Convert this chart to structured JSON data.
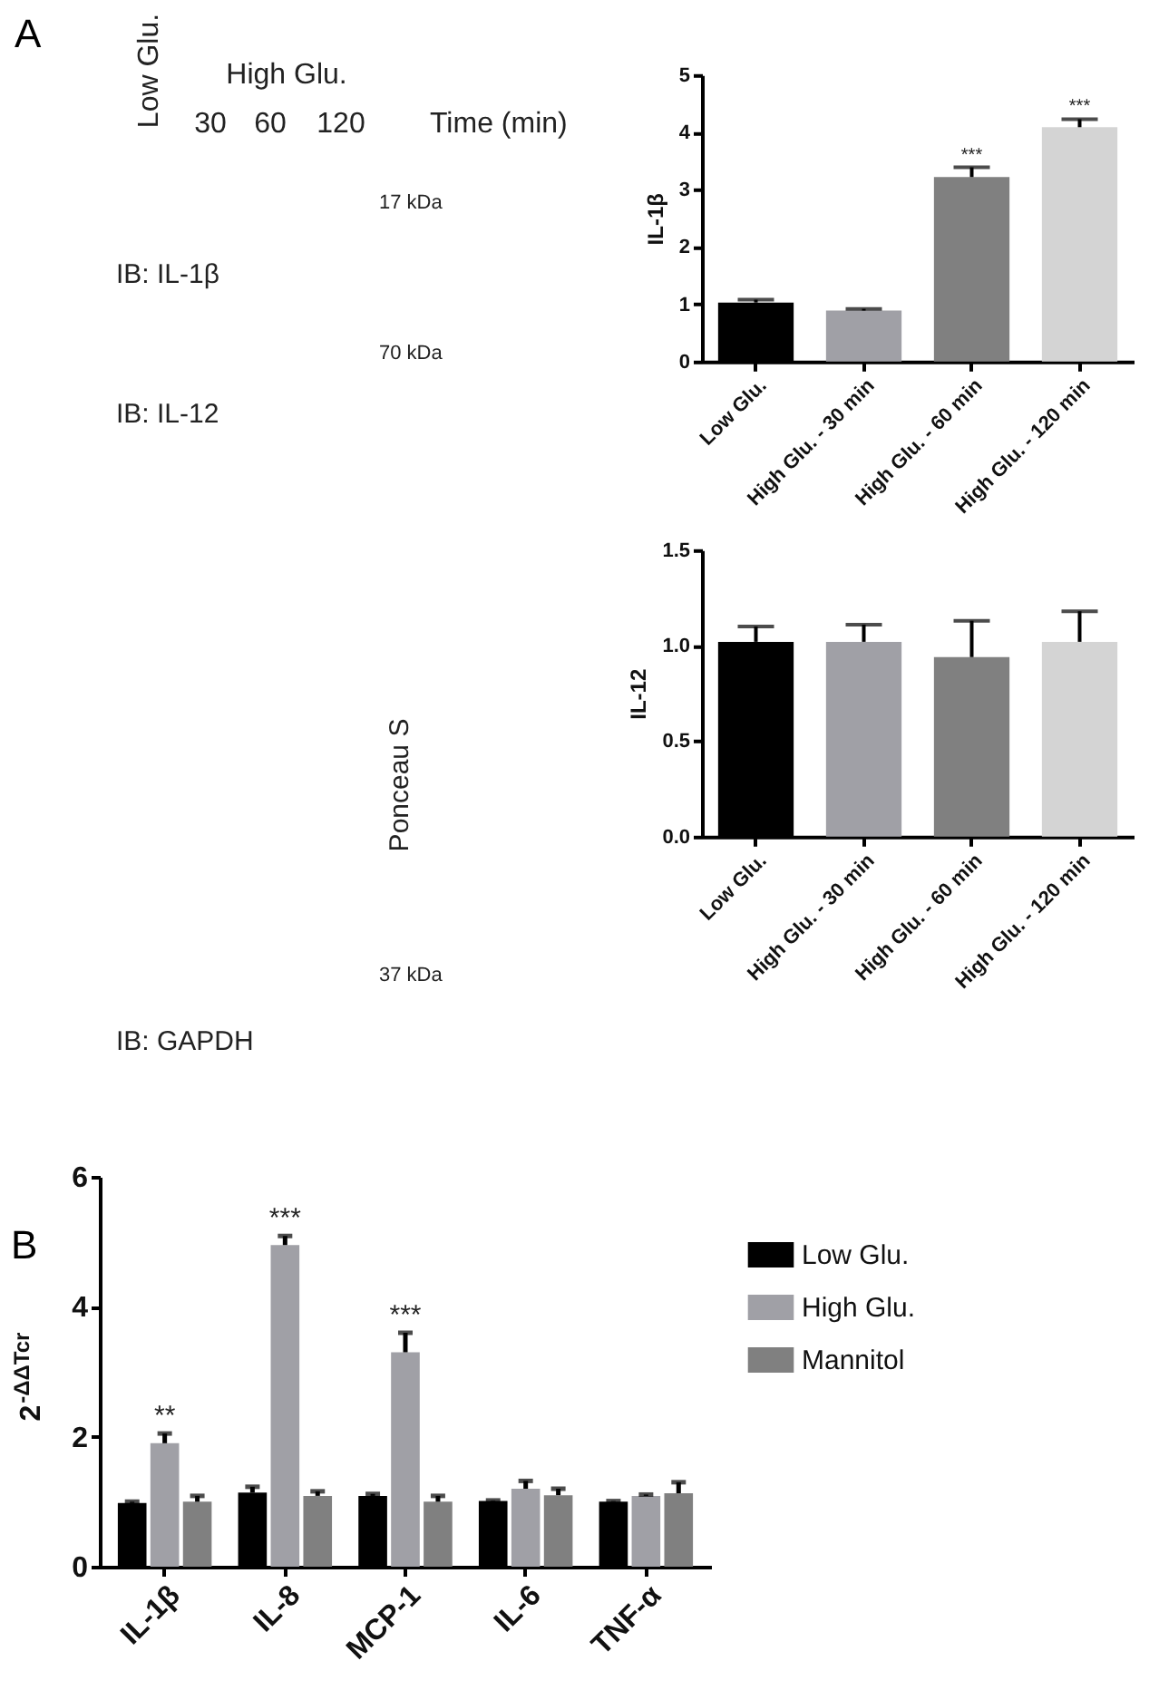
{
  "chart_data": [
    {
      "type": "other",
      "title": "A",
      "annotations": [
        "Low Glu.",
        "High Glu.",
        "30",
        "60",
        "120",
        "Time (min)",
        "17 kDa",
        "IB: IL-1β",
        "70 kDa",
        "IB: IL-12",
        "Ponceau S",
        "37 kDa",
        "IB: GAPDH"
      ]
    },
    {
      "type": "bar",
      "ylabel": "IL-1β",
      "categories": [
        "Low Glu.",
        "High Glu. - 30 min",
        "High Glu. - 60 min",
        "High Glu. - 120 min"
      ],
      "values": [
        1.03,
        0.89,
        3.22,
        4.09
      ],
      "colors": [
        "#000000",
        "#a0a0a6",
        "#808080",
        "#d4d4d4"
      ],
      "errors": [
        [
          1.03,
          1.08
        ],
        [
          0.89,
          0.92
        ],
        [
          3.22,
          3.39
        ],
        [
          4.09,
          4.23
        ]
      ],
      "ylim": [
        0,
        5
      ],
      "yticks": [
        0,
        1,
        2,
        3,
        4,
        5
      ],
      "annotations": [
        {
          "text": "***",
          "x": "High Glu. - 60 min",
          "y": 3.39
        },
        {
          "text": "***",
          "x": "High Glu. - 120 min",
          "y": 4.23
        }
      ]
    },
    {
      "type": "bar",
      "ylabel": "IL-12",
      "categories": [
        "Low Glu.",
        "High Glu. - 30 min",
        "High Glu. - 60 min",
        "High Glu. - 120 min"
      ],
      "values": [
        1.02,
        1.02,
        0.94,
        1.02
      ],
      "colors": [
        "#000000",
        "#a0a0a6",
        "#808080",
        "#d4d4d4"
      ],
      "errors": [
        [
          1.02,
          1.1
        ],
        [
          1.02,
          1.11
        ],
        [
          0.94,
          1.13
        ],
        [
          1.02,
          1.18
        ]
      ],
      "ylim": [
        0,
        1.5
      ],
      "yticks": [
        {
          "value": 0,
          "label": "0.0"
        },
        0.5,
        {
          "value": 1,
          "label": "1.0"
        },
        1.5
      ]
    },
    {
      "type": "bar",
      "title": "B",
      "ylabel": "2$^{-ΔΔTcr}$",
      "categories": [
        "IL-1β",
        "IL-8",
        "MCP-1",
        "IL-6",
        "TNF-α"
      ],
      "series": [
        {
          "name": "Low Glu.",
          "color": "#000000",
          "values": [
            0.98,
            1.14,
            1.09,
            1.01,
            1.0
          ],
          "errors": [
            [
              0.98,
              1.0
            ],
            [
              1.14,
              1.23
            ],
            [
              1.09,
              1.12
            ],
            [
              1.01,
              1.02
            ],
            [
              1.0,
              1.01
            ]
          ]
        },
        {
          "name": "High Glu.",
          "color": "#a0a0a6",
          "values": [
            1.9,
            4.95,
            3.3,
            1.2,
            1.09
          ],
          "errors": [
            [
              1.9,
              2.05
            ],
            [
              4.95,
              5.09
            ],
            [
              3.3,
              3.6
            ],
            [
              1.2,
              1.32
            ],
            [
              1.09,
              1.11
            ]
          ]
        },
        {
          "name": "Mannitol",
          "color": "#808080",
          "values": [
            1.0,
            1.09,
            1.0,
            1.1,
            1.13
          ],
          "errors": [
            [
              1.0,
              1.09
            ],
            [
              1.09,
              1.16
            ],
            [
              1.0,
              1.09
            ],
            [
              1.1,
              1.2
            ],
            [
              1.13,
              1.3
            ]
          ]
        }
      ],
      "ylim": [
        0,
        6
      ],
      "yticks": [
        0,
        2,
        4,
        6
      ],
      "legend": "right",
      "annotations": [
        {
          "text": "**",
          "x": "IL-1β",
          "y": 2.05
        },
        {
          "text": "***",
          "x": "IL-8",
          "y": 5.09
        },
        {
          "text": "***",
          "x": "MCP-1",
          "y": 3.6
        }
      ]
    }
  ]
}
